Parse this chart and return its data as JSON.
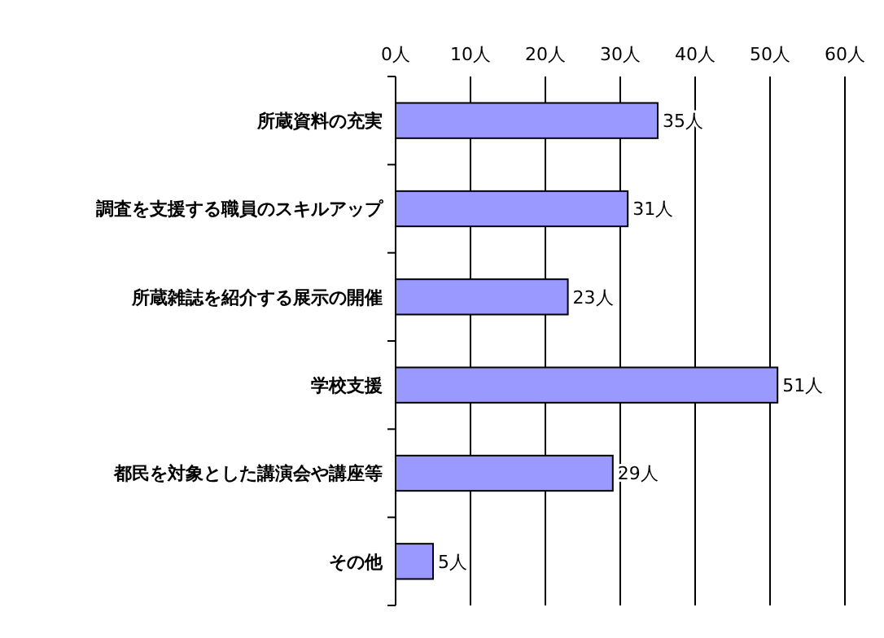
{
  "chart_data": {
    "type": "bar",
    "orientation": "horizontal",
    "categories": [
      "所蔵資料の充実",
      "調査を支援する職員のスキルアップ",
      "所蔵雑誌を紹介する展示の開催",
      "学校支援",
      "都民を対象とした講演会や講座等",
      "その他"
    ],
    "values": [
      35,
      31,
      23,
      51,
      29,
      5
    ],
    "value_labels": [
      "35人",
      "31人",
      "23人",
      "51人",
      "29人",
      "5人"
    ],
    "color": "#9999ff",
    "xlim": [
      0,
      60
    ],
    "xticks": [
      {
        "value": 0,
        "label": "0人"
      },
      {
        "value": 10,
        "label": "10人"
      },
      {
        "value": 20,
        "label": "20人"
      },
      {
        "value": 30,
        "label": "30人"
      },
      {
        "value": 40,
        "label": "40人"
      },
      {
        "value": 50,
        "label": "50人"
      },
      {
        "value": 60,
        "label": "60人"
      }
    ],
    "grid": "x"
  }
}
